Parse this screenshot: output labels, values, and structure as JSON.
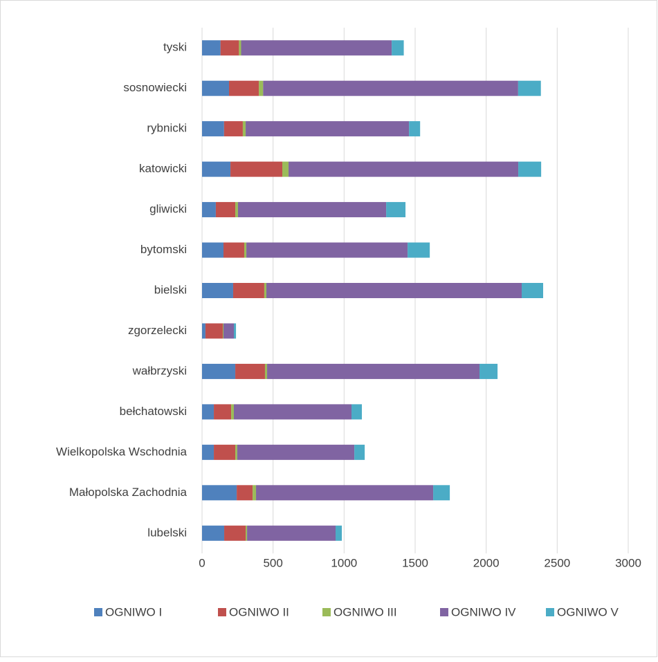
{
  "chart_data": {
    "type": "stacked_bar_horizontal",
    "categories": [
      "tyski",
      "sosnowiecki",
      "rybnicki",
      "katowicki",
      "gliwicki",
      "bytomski",
      "bielski",
      "zgorzelecki",
      "wałbrzyski",
      "bełchatowski",
      "Wielkopolska Wschodnia",
      "Małopolska Zachodnia",
      "lubelski"
    ],
    "series": [
      {
        "name": "OGNIWO I",
        "color": "#4f81bd",
        "values": [
          130,
          190,
          155,
          200,
          97,
          151,
          219,
          24,
          234,
          83,
          83,
          244,
          156
        ]
      },
      {
        "name": "OGNIWO II",
        "color": "#c0504d",
        "values": [
          130,
          210,
          132,
          365,
          137,
          146,
          219,
          122,
          209,
          122,
          151,
          112,
          151
        ]
      },
      {
        "name": "OGNIWO III",
        "color": "#9bbb59",
        "values": [
          15,
          30,
          20,
          44,
          19,
          15,
          15,
          5,
          15,
          19,
          14,
          24,
          10
        ]
      },
      {
        "name": "OGNIWO IV",
        "color": "#8064a2",
        "values": [
          1060,
          1795,
          1150,
          1617,
          1043,
          1135,
          1797,
          73,
          1495,
          828,
          824,
          1247,
          623
        ]
      },
      {
        "name": "OGNIWO V",
        "color": "#4bacc6",
        "values": [
          85,
          160,
          78,
          161,
          136,
          156,
          151,
          15,
          127,
          73,
          73,
          117,
          44
        ]
      }
    ],
    "xlim": [
      0,
      3000
    ],
    "xticks": [
      0,
      500,
      1000,
      1500,
      2000,
      2500,
      3000
    ],
    "grid": true,
    "legend": "bottom"
  }
}
